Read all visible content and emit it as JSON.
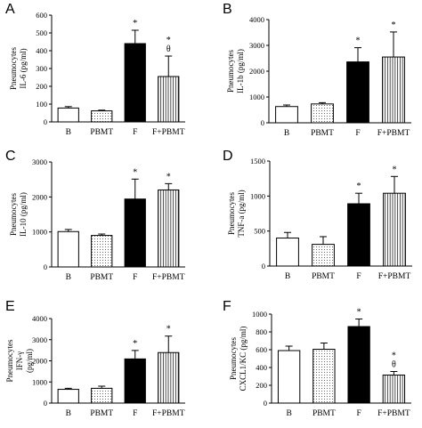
{
  "chart_data": [
    {
      "type": "bar",
      "panel": "A",
      "ylabel_lines": [
        "Pneumocytes",
        "IL-6 (pg/ml)"
      ],
      "ylim": [
        0,
        600
      ],
      "yticks": [
        0,
        100,
        200,
        300,
        400,
        500,
        600
      ],
      "categories": [
        "B",
        "PBMT",
        "F",
        "F+PBMT"
      ],
      "values": [
        78,
        62,
        440,
        255
      ],
      "errors": [
        8,
        4,
        75,
        115
      ],
      "annotations": [
        "",
        "",
        "*",
        "*\nθ"
      ]
    },
    {
      "type": "bar",
      "panel": "B",
      "ylabel_lines": [
        "Pneumocytes",
        "IL-1b (pg/ml)"
      ],
      "ylim": [
        0,
        4000
      ],
      "yticks": [
        0,
        1000,
        2000,
        3000,
        4000
      ],
      "categories": [
        "B",
        "PBMT",
        "F",
        "F+PBMT"
      ],
      "values": [
        630,
        730,
        2360,
        2550
      ],
      "errors": [
        60,
        50,
        550,
        970
      ],
      "annotations": [
        "",
        "",
        "*",
        "*"
      ]
    },
    {
      "type": "bar",
      "panel": "C",
      "ylabel_lines": [
        "Pneumocytes",
        "IL-10 (pg/ml)"
      ],
      "ylim": [
        0,
        3000
      ],
      "yticks": [
        0,
        1000,
        2000,
        3000
      ],
      "categories": [
        "B",
        "PBMT",
        "F",
        "F+PBMT"
      ],
      "values": [
        1010,
        900,
        1940,
        2200
      ],
      "errors": [
        60,
        40,
        570,
        180
      ],
      "annotations": [
        "",
        "",
        "*",
        "*"
      ]
    },
    {
      "type": "bar",
      "panel": "D",
      "ylabel_lines": [
        "Pneumocytes",
        "TNF-a (pg/ml)"
      ],
      "ylim": [
        0,
        1500
      ],
      "yticks": [
        0,
        500,
        1000,
        1500
      ],
      "categories": [
        "B",
        "PBMT",
        "F",
        "F+PBMT"
      ],
      "values": [
        400,
        310,
        890,
        1040
      ],
      "errors": [
        80,
        110,
        150,
        240
      ],
      "annotations": [
        "",
        "",
        "*",
        "*"
      ]
    },
    {
      "type": "bar",
      "panel": "E",
      "ylabel_lines": [
        "Pneumocytes",
        "IFN-γ",
        "(pg/ml)"
      ],
      "ylim": [
        0,
        4000
      ],
      "yticks": [
        0,
        1000,
        2000,
        3000,
        4000
      ],
      "categories": [
        "B",
        "PBMT",
        "F",
        "F+PBMT"
      ],
      "values": [
        650,
        700,
        2090,
        2390
      ],
      "errors": [
        50,
        100,
        400,
        780
      ],
      "annotations": [
        "",
        "",
        "*",
        "*"
      ]
    },
    {
      "type": "bar",
      "panel": "F",
      "ylabel_lines": [
        "Pneumocytes",
        "CXCL1/KC (pg/ml)"
      ],
      "ylim": [
        0,
        1000
      ],
      "yticks": [
        0,
        200,
        400,
        600,
        800,
        1000
      ],
      "categories": [
        "B",
        "PBMT",
        "F",
        "F+PBMT"
      ],
      "values": [
        590,
        605,
        860,
        315
      ],
      "errors": [
        50,
        70,
        85,
        40
      ],
      "annotations": [
        "",
        "",
        "*",
        "*\nθ"
      ]
    }
  ]
}
